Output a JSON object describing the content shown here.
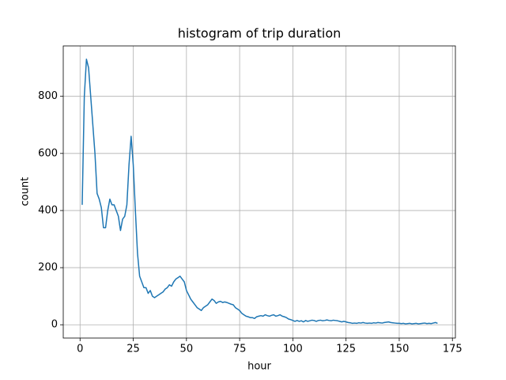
{
  "chart_data": {
    "type": "line",
    "title": "histogram of trip duration",
    "x_label": "hour",
    "y_label": "count",
    "x": [
      1,
      2,
      3,
      4,
      5,
      6,
      7,
      8,
      9,
      10,
      11,
      12,
      13,
      14,
      15,
      16,
      17,
      18,
      19,
      20,
      21,
      22,
      23,
      24,
      25,
      26,
      27,
      28,
      29,
      30,
      31,
      32,
      33,
      34,
      35,
      36,
      37,
      38,
      39,
      40,
      41,
      42,
      43,
      44,
      45,
      46,
      47,
      48,
      49,
      50,
      51,
      52,
      53,
      54,
      55,
      56,
      57,
      58,
      59,
      60,
      61,
      62,
      63,
      64,
      65,
      66,
      67,
      68,
      69,
      70,
      71,
      72,
      73,
      74,
      75,
      76,
      77,
      78,
      79,
      80,
      81,
      82,
      83,
      84,
      85,
      86,
      87,
      88,
      89,
      90,
      91,
      92,
      93,
      94,
      95,
      96,
      97,
      98,
      99,
      100,
      101,
      102,
      103,
      104,
      105,
      106,
      107,
      108,
      109,
      110,
      111,
      112,
      113,
      114,
      115,
      116,
      117,
      118,
      119,
      120,
      121,
      122,
      123,
      124,
      125,
      126,
      127,
      128,
      129,
      130,
      131,
      132,
      133,
      134,
      135,
      136,
      137,
      138,
      139,
      140,
      141,
      142,
      143,
      144,
      145,
      146,
      147,
      148,
      149,
      150,
      151,
      152,
      153,
      154,
      155,
      156,
      157,
      158,
      159,
      160,
      161,
      162,
      163,
      164,
      165,
      166,
      167,
      168
    ],
    "series": [
      {
        "name": "count",
        "color": "#1f77b4",
        "values": [
          420,
          800,
          930,
          900,
          800,
          700,
          600,
          460,
          440,
          410,
          340,
          340,
          400,
          440,
          420,
          420,
          400,
          380,
          330,
          370,
          380,
          420,
          560,
          660,
          560,
          400,
          250,
          170,
          150,
          130,
          130,
          110,
          120,
          100,
          95,
          100,
          105,
          110,
          115,
          125,
          130,
          140,
          135,
          150,
          160,
          165,
          170,
          160,
          150,
          120,
          105,
          90,
          80,
          70,
          60,
          55,
          50,
          60,
          65,
          70,
          80,
          90,
          85,
          75,
          80,
          82,
          78,
          80,
          78,
          75,
          72,
          70,
          60,
          55,
          50,
          40,
          35,
          30,
          28,
          25,
          25,
          22,
          28,
          30,
          32,
          30,
          35,
          32,
          30,
          33,
          35,
          30,
          32,
          35,
          30,
          28,
          25,
          20,
          18,
          15,
          12,
          15,
          12,
          14,
          10,
          15,
          12,
          14,
          16,
          15,
          12,
          15,
          16,
          14,
          15,
          17,
          15,
          14,
          16,
          15,
          14,
          12,
          10,
          12,
          10,
          8,
          7,
          5,
          6,
          5,
          7,
          6,
          8,
          6,
          5,
          6,
          5,
          7,
          6,
          8,
          7,
          6,
          8,
          9,
          10,
          8,
          7,
          6,
          5,
          5,
          4,
          5,
          3,
          4,
          5,
          3,
          4,
          5,
          3,
          4,
          5,
          6,
          4,
          5,
          4,
          6,
          8,
          5
        ]
      }
    ],
    "xlim": [
      -7.9,
      176.4
    ],
    "ylim": [
      -46.5,
      976.5
    ],
    "xticks": [
      0,
      25,
      50,
      75,
      100,
      125,
      150,
      175
    ],
    "yticks": [
      0,
      200,
      400,
      600,
      800
    ],
    "grid": true
  }
}
